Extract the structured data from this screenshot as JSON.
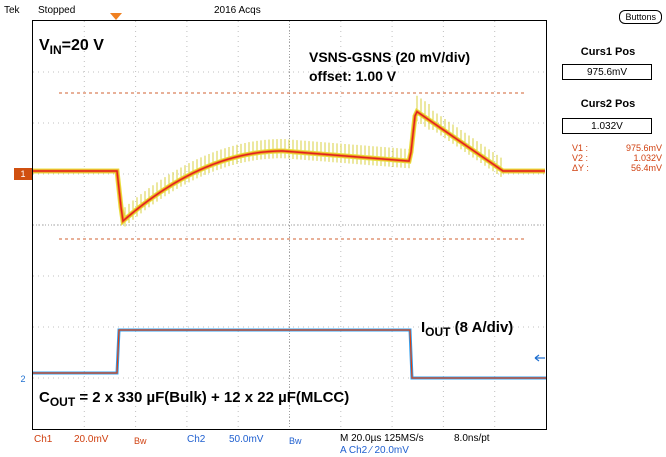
{
  "header": {
    "brand": "Tek",
    "run_state": "Stopped",
    "acquisitions": "2016 Acqs"
  },
  "screen": {
    "channel1_marker": "1",
    "channel2_marker": "2",
    "annotations": {
      "vin_main": "V",
      "vin_sub": "IN",
      "vin_value": "=20 V",
      "vsns_line1": "VSNS-GSNS (20 mV/div)",
      "vsns_line2": "offset: 1.00 V",
      "iout_main": "I",
      "iout_sub": "OUT",
      "iout_rest": " (8 A/div)",
      "cout_main": "C",
      "cout_sub": "OUT",
      "cout_rest": " = 2 x 330 µF(Bulk) + 12 x 22 µF(MLCC)"
    }
  },
  "status": {
    "ch1_label": "Ch1",
    "ch1_scale": "20.0mV",
    "ch1_bw": "Bw",
    "ch2_label": "Ch2",
    "ch2_scale": "50.0mV",
    "ch2_bw": "Bw",
    "timebase": "M 20.0µs 125MS/s",
    "sample_interval": "8.0ns/pt",
    "trigger": "A  Ch2  ⁄  20.0mV"
  },
  "side_panel": {
    "buttons_label": "Buttons",
    "curs1_title": "Curs1 Pos",
    "curs1_value": "975.6mV",
    "curs2_title": "Curs2 Pos",
    "curs2_value": "1.032V",
    "readouts": [
      {
        "label": "V1 :",
        "value": "975.6mV"
      },
      {
        "label": "V2 :",
        "value": "1.032V"
      },
      {
        "label": "ΔY :",
        "value": "56.4mV"
      }
    ]
  },
  "colors": {
    "ch1_trace_core": "#e02020",
    "ch1_trace_mid": "#f09020",
    "ch1_trace_outer": "#e8e040",
    "ch2_trace": "#30a0f0",
    "cursor": "#d06030",
    "marker_ch1": "#d05010",
    "marker_ch2": "#2070d0"
  }
}
